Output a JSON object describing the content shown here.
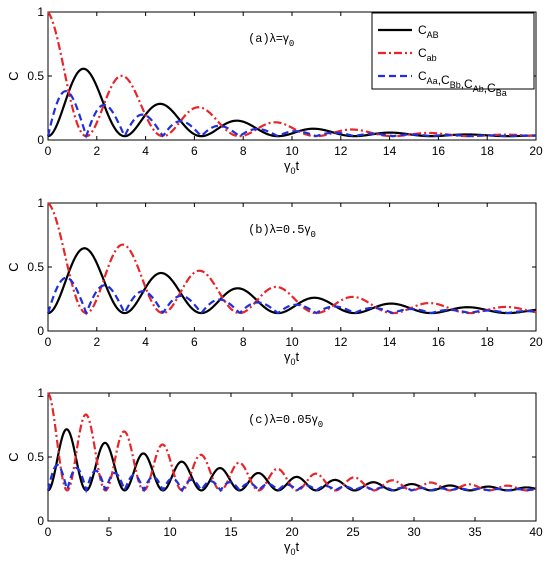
{
  "chart_data": [
    {
      "type": "line",
      "panel": "a",
      "annotation": {
        "prefix": "(a)",
        "lambda": "λ",
        "eq": "=",
        "gamma": "γ",
        "gamma_sub": "0",
        "factor": ""
      },
      "xlabel": {
        "main": "γ",
        "sub": "0",
        "rest": "t"
      },
      "ylabel": "C",
      "xlim": [
        0,
        20
      ],
      "ylim": [
        0,
        1
      ],
      "xticks": [
        "0",
        "2",
        "4",
        "6",
        "8",
        "10",
        "12",
        "14",
        "16",
        "18",
        "20"
      ],
      "yticks": [
        "0",
        "0.5",
        "1"
      ],
      "lambda_over_gamma": 1.0,
      "legend": {
        "position": "top-right",
        "entries": [
          {
            "main": "C",
            "sub": "AB"
          },
          {
            "main": "C",
            "sub": "ab"
          },
          {
            "parts": [
              [
                "C",
                "Aa"
              ],
              [
                "C",
                "Bb"
              ],
              [
                "C",
                "Ab"
              ],
              [
                "C",
                "Ba"
              ]
            ]
          }
        ]
      },
      "series": [
        {
          "key": "C_AB",
          "color": "#000000",
          "style": "solid"
        },
        {
          "key": "C_ab",
          "color": "#e8262a",
          "style": "dashdot"
        },
        {
          "key": "C_Aa",
          "color": "#1f2fdc",
          "style": "dashed"
        }
      ]
    },
    {
      "type": "line",
      "panel": "b",
      "annotation": {
        "prefix": "(b)",
        "lambda": "λ",
        "eq": "=",
        "gamma": "γ",
        "gamma_sub": "0",
        "factor": "0.5"
      },
      "xlabel": {
        "main": "γ",
        "sub": "0",
        "rest": "t"
      },
      "ylabel": "C",
      "xlim": [
        0,
        20
      ],
      "ylim": [
        0,
        1
      ],
      "xticks": [
        "0",
        "2",
        "4",
        "6",
        "8",
        "10",
        "12",
        "14",
        "16",
        "18",
        "20"
      ],
      "yticks": [
        "0",
        "0.5",
        "1"
      ],
      "lambda_over_gamma": 0.5,
      "series": [
        {
          "key": "C_AB",
          "color": "#000000",
          "style": "solid"
        },
        {
          "key": "C_ab",
          "color": "#e8262a",
          "style": "dashdot"
        },
        {
          "key": "C_Aa",
          "color": "#1f2fdc",
          "style": "dashed"
        }
      ]
    },
    {
      "type": "line",
      "panel": "c",
      "annotation": {
        "prefix": "(c)",
        "lambda": "λ",
        "eq": "=",
        "gamma": "γ",
        "gamma_sub": "0",
        "factor": "0.05"
      },
      "xlabel": {
        "main": "γ",
        "sub": "0",
        "rest": "t"
      },
      "ylabel": "C",
      "xlim": [
        0,
        40
      ],
      "ylim": [
        0,
        1
      ],
      "xticks": [
        "0",
        "5",
        "10",
        "15",
        "20",
        "25",
        "30",
        "35",
        "40"
      ],
      "yticks": [
        "0",
        "0.5",
        "1"
      ],
      "lambda_over_gamma": 0.05,
      "series": [
        {
          "key": "C_AB",
          "color": "#000000",
          "style": "solid"
        },
        {
          "key": "C_ab",
          "color": "#e8262a",
          "style": "dashdot"
        },
        {
          "key": "C_Aa",
          "color": "#1f2fdc",
          "style": "dashed"
        }
      ]
    }
  ]
}
